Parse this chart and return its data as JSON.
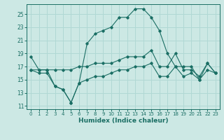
{
  "xlabel": "Humidex (Indice chaleur)",
  "bg_color": "#cce8e4",
  "grid_color": "#b0d8d4",
  "line_color": "#1a6e64",
  "xlim": [
    -0.5,
    23.5
  ],
  "ylim": [
    10.5,
    26.5
  ],
  "xticks": [
    0,
    1,
    2,
    3,
    4,
    5,
    6,
    7,
    8,
    9,
    10,
    11,
    12,
    13,
    14,
    15,
    16,
    17,
    18,
    19,
    20,
    21,
    22,
    23
  ],
  "yticks": [
    11,
    13,
    15,
    17,
    19,
    21,
    23,
    25
  ],
  "line1": [
    18.5,
    16.5,
    16.5,
    14.0,
    13.5,
    11.5,
    14.5,
    20.5,
    22.0,
    22.5,
    23.0,
    24.5,
    24.5,
    25.8,
    25.8,
    24.5,
    22.5,
    19.0,
    17.0,
    17.0,
    17.0,
    15.0,
    17.5,
    16.0
  ],
  "line2": [
    16.5,
    16.5,
    16.5,
    16.5,
    16.5,
    16.5,
    17.0,
    17.0,
    17.5,
    17.5,
    17.5,
    18.0,
    18.5,
    18.5,
    18.5,
    19.5,
    17.0,
    17.0,
    19.0,
    16.5,
    16.5,
    15.5,
    17.5,
    16.0
  ],
  "line3": [
    16.5,
    16.0,
    16.0,
    14.0,
    13.5,
    11.5,
    14.5,
    15.0,
    15.5,
    15.5,
    16.0,
    16.5,
    16.5,
    17.0,
    17.0,
    17.5,
    15.5,
    15.5,
    17.0,
    15.5,
    16.0,
    15.0,
    16.5,
    16.0
  ]
}
